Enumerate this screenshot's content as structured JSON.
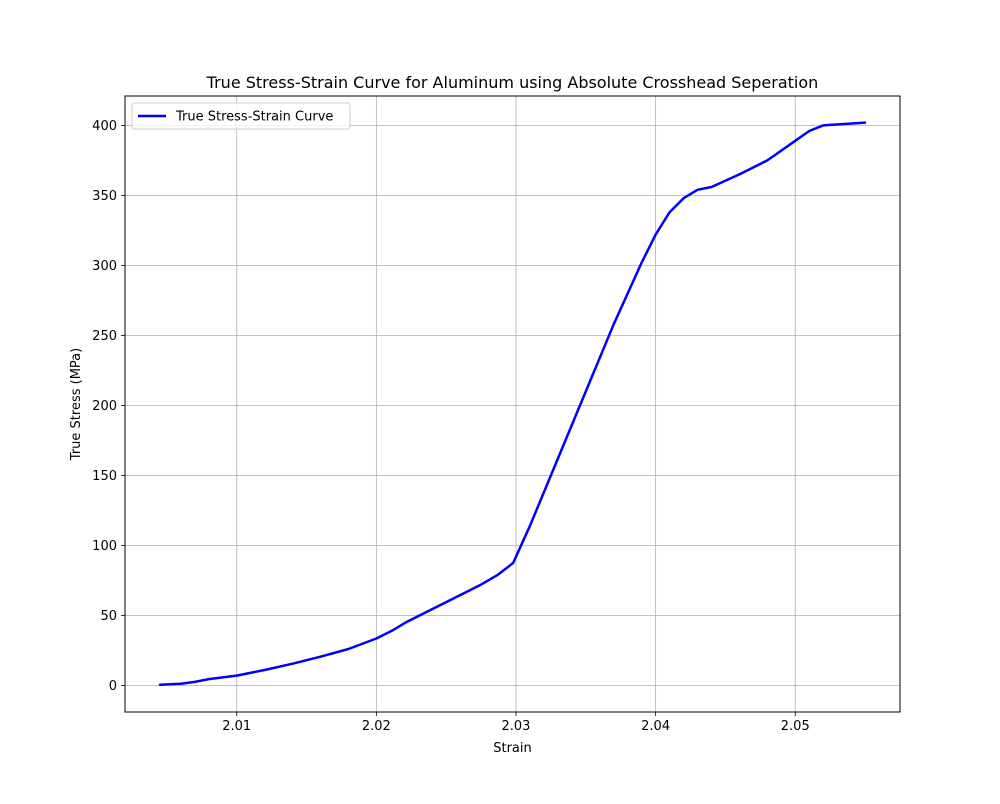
{
  "chart_data": {
    "type": "line",
    "title": "True Stress-Strain Curve for Aluminum using Absolute Crosshead Seperation",
    "xlabel": "Strain",
    "ylabel": "True Stress (MPa)",
    "xlim": [
      2.002,
      2.0575
    ],
    "ylim": [
      -19,
      421
    ],
    "x_ticks": [
      2.01,
      2.02,
      2.03,
      2.04,
      2.05
    ],
    "x_tick_labels": [
      "2.01",
      "2.02",
      "2.03",
      "2.04",
      "2.05"
    ],
    "y_ticks": [
      0,
      50,
      100,
      150,
      200,
      250,
      300,
      350,
      400
    ],
    "y_tick_labels": [
      "0",
      "50",
      "100",
      "150",
      "200",
      "250",
      "300",
      "350",
      "400"
    ],
    "grid": true,
    "legend_position": "upper-left",
    "series": [
      {
        "name": "True Stress-Strain Curve",
        "color": "#0000ff",
        "x": [
          2.0045,
          2.006,
          2.007,
          2.008,
          2.01,
          2.012,
          2.014,
          2.016,
          2.018,
          2.02,
          2.0212,
          2.0222,
          2.024,
          2.026,
          2.0275,
          2.0287,
          2.0298,
          2.031,
          2.033,
          2.035,
          2.037,
          2.039,
          2.04,
          2.041,
          2.042,
          2.043,
          2.044,
          2.046,
          2.048,
          2.05,
          2.051,
          2.052,
          2.0535,
          2.055
        ],
        "y": [
          0.5,
          1.2,
          2.5,
          4.5,
          7,
          11,
          15.5,
          20.5,
          26,
          33.5,
          39.5,
          45.5,
          54.5,
          64.5,
          72,
          79,
          87.5,
          114,
          162,
          210,
          258,
          302,
          322,
          338,
          348,
          354,
          356,
          365,
          375,
          389,
          396,
          400,
          401,
          402
        ]
      }
    ]
  }
}
